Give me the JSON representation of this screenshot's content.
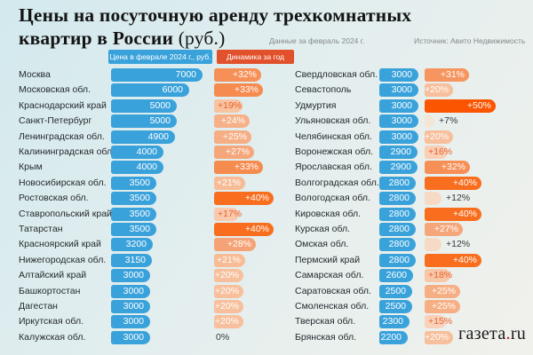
{
  "title": {
    "line1": "Цены на посуточную аренду трехкомнатных",
    "line2_bold": "квартир в России",
    "line2_unit": "(руб.)"
  },
  "meta": {
    "data_note": "Данные за февраль 2024 г.",
    "source": "Источник: Авито Недвижимость"
  },
  "headers": {
    "price": "Цена в феврале 2024 г., руб.",
    "change": "Динамика за год"
  },
  "logo": {
    "name": "газета",
    "dot": ".",
    "tld": "ru"
  },
  "colors": {
    "background_start": "#D3E9EE",
    "background_end": "#F1F1EC",
    "price_bar": "#3AA2DB",
    "price_header_bg": "#3AA2DB",
    "change_header_bg": "#E1512B",
    "change_text_on_light_bar": "#E8612C",
    "text_dark": "#242A2E",
    "subtitle_gray": "#85898C",
    "logo_dot_red": "#D6001C",
    "change_ramp": [
      {
        "pct": 7,
        "color": "#F3E6D6"
      },
      {
        "pct": 15,
        "color": "#FAD2BB"
      },
      {
        "pct": 20,
        "color": "#F7BF9B"
      },
      {
        "pct": 28,
        "color": "#F5A376"
      },
      {
        "pct": 33,
        "color": "#F68B4F"
      },
      {
        "pct": 40,
        "color": "#F86E1E"
      },
      {
        "pct": 50,
        "color": "#FB5502"
      }
    ]
  },
  "chart_data": {
    "type": "bar",
    "title": "Цены на посуточную аренду трехкомнатных квартир в России (руб.)",
    "unit": "руб.",
    "series_labels": [
      "Цена в феврале 2024 г., руб.",
      "Динамика за год"
    ],
    "price_range": [
      2200,
      7000
    ],
    "change_range_pct": [
      0,
      50
    ],
    "columns": [
      {
        "rows": [
          {
            "region": "Москва",
            "price": 7000,
            "change_pct": 32,
            "change_label": "+32%"
          },
          {
            "region": "Московская обл.",
            "price": 6000,
            "change_pct": 33,
            "change_label": "+33%"
          },
          {
            "region": "Краснодарский край",
            "price": 5000,
            "change_pct": 19,
            "change_label": "+19%"
          },
          {
            "region": "Санкт-Петербург",
            "price": 5000,
            "change_pct": 24,
            "change_label": "+24%"
          },
          {
            "region": "Ленинградская обл.",
            "price": 4900,
            "change_pct": 25,
            "change_label": "+25%"
          },
          {
            "region": "Калининградская обл.",
            "price": 4000,
            "change_pct": 27,
            "change_label": "+27%"
          },
          {
            "region": "Крым",
            "price": 4000,
            "change_pct": 33,
            "change_label": "+33%"
          },
          {
            "region": "Новосибирская обл.",
            "price": 3500,
            "change_pct": 21,
            "change_label": "+21%"
          },
          {
            "region": "Ростовская обл.",
            "price": 3500,
            "change_pct": 40,
            "change_label": "+40%"
          },
          {
            "region": "Ставропольский край",
            "price": 3500,
            "change_pct": 17,
            "change_label": "+17%"
          },
          {
            "region": "Татарстан",
            "price": 3500,
            "change_pct": 40,
            "change_label": "+40%"
          },
          {
            "region": "Красноярский край",
            "price": 3200,
            "change_pct": 28,
            "change_label": "+28%"
          },
          {
            "region": "Нижегородская обл.",
            "price": 3150,
            "change_pct": 21,
            "change_label": "+21%"
          },
          {
            "region": "Алтайский край",
            "price": 3000,
            "change_pct": 20,
            "change_label": "+20%"
          },
          {
            "region": "Башкортостан",
            "price": 3000,
            "change_pct": 20,
            "change_label": "+20%"
          },
          {
            "region": "Дагестан",
            "price": 3000,
            "change_pct": 20,
            "change_label": "+20%"
          },
          {
            "region": "Иркутская обл.",
            "price": 3000,
            "change_pct": 20,
            "change_label": "+20%"
          },
          {
            "region": "Калужская обл.",
            "price": 3000,
            "change_pct": 0,
            "change_label": "0%"
          }
        ]
      },
      {
        "rows": [
          {
            "region": "Свердловская обл.",
            "price": 3000,
            "change_pct": 31,
            "change_label": "+31%"
          },
          {
            "region": "Севастополь",
            "price": 3000,
            "change_pct": 20,
            "change_label": "+20%"
          },
          {
            "region": "Удмуртия",
            "price": 3000,
            "change_pct": 50,
            "change_label": "+50%"
          },
          {
            "region": "Ульяновская обл.",
            "price": 3000,
            "change_pct": 7,
            "change_label": "+7%"
          },
          {
            "region": "Челябинская обл.",
            "price": 3000,
            "change_pct": 20,
            "change_label": "+20%"
          },
          {
            "region": "Воронежская обл.",
            "price": 2900,
            "change_pct": 16,
            "change_label": "+16%"
          },
          {
            "region": "Ярославская обл.",
            "price": 2900,
            "change_pct": 32,
            "change_label": "+32%"
          },
          {
            "region": "Волгоградская обл.",
            "price": 2800,
            "change_pct": 40,
            "change_label": "+40%"
          },
          {
            "region": "Вологодская обл.",
            "price": 2800,
            "change_pct": 12,
            "change_label": "+12%"
          },
          {
            "region": "Кировская обл.",
            "price": 2800,
            "change_pct": 40,
            "change_label": "+40%"
          },
          {
            "region": "Курская обл.",
            "price": 2800,
            "change_pct": 27,
            "change_label": "+27%"
          },
          {
            "region": "Омская обл.",
            "price": 2800,
            "change_pct": 12,
            "change_label": "+12%"
          },
          {
            "region": "Пермский край",
            "price": 2800,
            "change_pct": 40,
            "change_label": "+40%"
          },
          {
            "region": "Самарская обл.",
            "price": 2600,
            "change_pct": 18,
            "change_label": "+18%"
          },
          {
            "region": "Саратовская обл.",
            "price": 2500,
            "change_pct": 25,
            "change_label": "+25%"
          },
          {
            "region": "Смоленская обл.",
            "price": 2500,
            "change_pct": 25,
            "change_label": "+25%"
          },
          {
            "region": "Тверская обл.",
            "price": 2300,
            "change_pct": 15,
            "change_label": "+15%"
          },
          {
            "region": "Брянская обл.",
            "price": 2200,
            "change_pct": 20,
            "change_label": "+20%"
          }
        ]
      }
    ]
  }
}
